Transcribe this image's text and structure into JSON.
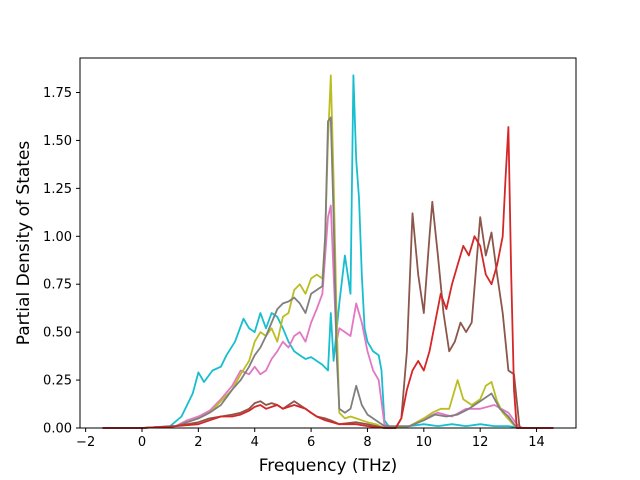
{
  "chart_data": {
    "type": "line",
    "title": "",
    "xlabel": "Frequency (THz)",
    "ylabel": "Partial Density of States",
    "xlim": [
      -2.2,
      15.4
    ],
    "ylim": [
      0,
      1.93
    ],
    "xticks": [
      "−2",
      "0",
      "2",
      "4",
      "6",
      "8",
      "10",
      "12",
      "14"
    ],
    "xtick_values": [
      -2,
      0,
      2,
      4,
      6,
      8,
      10,
      12,
      14
    ],
    "yticks": [
      "0.00",
      "0.25",
      "0.50",
      "0.75",
      "1.00",
      "1.25",
      "1.50",
      "1.75"
    ],
    "ytick_values": [
      0,
      0.25,
      0.5,
      0.75,
      1.0,
      1.25,
      1.5,
      1.75
    ],
    "grid": false,
    "legend": "none",
    "series": [
      {
        "color": "#17becf",
        "points": [
          [
            -1.4,
            0
          ],
          [
            0,
            0
          ],
          [
            1.0,
            0.01
          ],
          [
            1.4,
            0.06
          ],
          [
            1.6,
            0.12
          ],
          [
            1.8,
            0.18
          ],
          [
            2.0,
            0.29
          ],
          [
            2.2,
            0.24
          ],
          [
            2.5,
            0.3
          ],
          [
            2.8,
            0.32
          ],
          [
            3.0,
            0.38
          ],
          [
            3.3,
            0.45
          ],
          [
            3.6,
            0.57
          ],
          [
            3.8,
            0.52
          ],
          [
            4.0,
            0.5
          ],
          [
            4.2,
            0.6
          ],
          [
            4.4,
            0.52
          ],
          [
            4.6,
            0.6
          ],
          [
            4.8,
            0.58
          ],
          [
            5.0,
            0.52
          ],
          [
            5.2,
            0.45
          ],
          [
            5.4,
            0.4
          ],
          [
            5.6,
            0.38
          ],
          [
            5.8,
            0.36
          ],
          [
            6.0,
            0.37
          ],
          [
            6.2,
            0.35
          ],
          [
            6.4,
            0.33
          ],
          [
            6.6,
            0.3
          ],
          [
            6.7,
            0.6
          ],
          [
            6.8,
            0.35
          ],
          [
            7.0,
            0.65
          ],
          [
            7.2,
            0.9
          ],
          [
            7.3,
            0.8
          ],
          [
            7.4,
            0.7
          ],
          [
            7.5,
            1.84
          ],
          [
            7.6,
            1.4
          ],
          [
            7.7,
            1.2
          ],
          [
            7.8,
            0.8
          ],
          [
            7.9,
            0.52
          ],
          [
            8.0,
            0.45
          ],
          [
            8.2,
            0.4
          ],
          [
            8.4,
            0.38
          ],
          [
            8.5,
            0.3
          ],
          [
            8.6,
            0.04
          ],
          [
            8.8,
            0
          ],
          [
            9.5,
            0.01
          ],
          [
            10.0,
            0.02
          ],
          [
            10.5,
            0.01
          ],
          [
            11.0,
            0.02
          ],
          [
            11.5,
            0.01
          ],
          [
            12.0,
            0.02
          ],
          [
            12.5,
            0.01
          ],
          [
            13.0,
            0.01
          ],
          [
            13.5,
            0
          ],
          [
            14.6,
            0
          ]
        ]
      },
      {
        "color": "#e377c2",
        "points": [
          [
            -1.4,
            0
          ],
          [
            0,
            0
          ],
          [
            1.2,
            0.01
          ],
          [
            1.6,
            0.04
          ],
          [
            2.0,
            0.06
          ],
          [
            2.4,
            0.09
          ],
          [
            2.8,
            0.15
          ],
          [
            3.2,
            0.22
          ],
          [
            3.5,
            0.3
          ],
          [
            3.8,
            0.28
          ],
          [
            4.0,
            0.32
          ],
          [
            4.2,
            0.28
          ],
          [
            4.4,
            0.3
          ],
          [
            4.6,
            0.36
          ],
          [
            4.8,
            0.4
          ],
          [
            5.0,
            0.45
          ],
          [
            5.2,
            0.42
          ],
          [
            5.4,
            0.48
          ],
          [
            5.6,
            0.5
          ],
          [
            5.8,
            0.45
          ],
          [
            6.0,
            0.55
          ],
          [
            6.2,
            0.62
          ],
          [
            6.4,
            0.7
          ],
          [
            6.5,
            0.9
          ],
          [
            6.6,
            1.1
          ],
          [
            6.7,
            1.16
          ],
          [
            6.8,
            0.8
          ],
          [
            6.9,
            0.45
          ],
          [
            7.0,
            0.52
          ],
          [
            7.2,
            0.5
          ],
          [
            7.4,
            0.48
          ],
          [
            7.6,
            0.65
          ],
          [
            7.8,
            0.55
          ],
          [
            8.0,
            0.4
          ],
          [
            8.2,
            0.3
          ],
          [
            8.4,
            0.25
          ],
          [
            8.6,
            0.02
          ],
          [
            8.8,
            0
          ],
          [
            9.5,
            0.01
          ],
          [
            10.0,
            0.05
          ],
          [
            10.5,
            0.08
          ],
          [
            11.0,
            0.06
          ],
          [
            11.5,
            0.1
          ],
          [
            12.0,
            0.1
          ],
          [
            12.5,
            0.12
          ],
          [
            13.0,
            0.08
          ],
          [
            13.3,
            0.02
          ],
          [
            13.5,
            0
          ],
          [
            14.6,
            0
          ]
        ]
      },
      {
        "color": "#bcbd22",
        "points": [
          [
            -1.4,
            0
          ],
          [
            0,
            0
          ],
          [
            1.2,
            0.01
          ],
          [
            1.6,
            0.03
          ],
          [
            2.0,
            0.05
          ],
          [
            2.4,
            0.08
          ],
          [
            2.8,
            0.14
          ],
          [
            3.2,
            0.2
          ],
          [
            3.5,
            0.28
          ],
          [
            3.8,
            0.35
          ],
          [
            4.0,
            0.45
          ],
          [
            4.2,
            0.5
          ],
          [
            4.4,
            0.48
          ],
          [
            4.6,
            0.52
          ],
          [
            4.8,
            0.45
          ],
          [
            5.0,
            0.58
          ],
          [
            5.2,
            0.6
          ],
          [
            5.4,
            0.72
          ],
          [
            5.6,
            0.75
          ],
          [
            5.8,
            0.7
          ],
          [
            6.0,
            0.78
          ],
          [
            6.2,
            0.8
          ],
          [
            6.4,
            0.78
          ],
          [
            6.5,
            1.0
          ],
          [
            6.6,
            1.5
          ],
          [
            6.7,
            1.84
          ],
          [
            6.8,
            1.3
          ],
          [
            6.9,
            0.6
          ],
          [
            7.0,
            0.08
          ],
          [
            7.2,
            0.05
          ],
          [
            7.4,
            0.06
          ],
          [
            7.6,
            0.05
          ],
          [
            7.8,
            0.04
          ],
          [
            8.0,
            0.03
          ],
          [
            8.3,
            0.02
          ],
          [
            8.6,
            0
          ],
          [
            9.5,
            0.01
          ],
          [
            10.0,
            0.05
          ],
          [
            10.3,
            0.08
          ],
          [
            10.6,
            0.1
          ],
          [
            10.9,
            0.1
          ],
          [
            11.2,
            0.25
          ],
          [
            11.4,
            0.15
          ],
          [
            11.7,
            0.12
          ],
          [
            12.0,
            0.15
          ],
          [
            12.2,
            0.22
          ],
          [
            12.4,
            0.24
          ],
          [
            12.6,
            0.14
          ],
          [
            12.8,
            0.08
          ],
          [
            13.1,
            0.03
          ],
          [
            13.3,
            0
          ],
          [
            14.6,
            0
          ]
        ]
      },
      {
        "color": "#7f7f7f",
        "points": [
          [
            -1.4,
            0
          ],
          [
            0,
            0
          ],
          [
            1.2,
            0.01
          ],
          [
            1.6,
            0.03
          ],
          [
            2.0,
            0.05
          ],
          [
            2.4,
            0.08
          ],
          [
            2.8,
            0.12
          ],
          [
            3.2,
            0.2
          ],
          [
            3.5,
            0.25
          ],
          [
            3.8,
            0.32
          ],
          [
            4.0,
            0.38
          ],
          [
            4.2,
            0.42
          ],
          [
            4.4,
            0.48
          ],
          [
            4.6,
            0.55
          ],
          [
            4.8,
            0.62
          ],
          [
            5.0,
            0.65
          ],
          [
            5.2,
            0.66
          ],
          [
            5.4,
            0.68
          ],
          [
            5.6,
            0.65
          ],
          [
            5.8,
            0.6
          ],
          [
            6.0,
            0.7
          ],
          [
            6.2,
            0.72
          ],
          [
            6.4,
            0.74
          ],
          [
            6.5,
            1.0
          ],
          [
            6.6,
            1.6
          ],
          [
            6.7,
            1.62
          ],
          [
            6.8,
            1.1
          ],
          [
            6.9,
            0.4
          ],
          [
            7.0,
            0.1
          ],
          [
            7.2,
            0.08
          ],
          [
            7.4,
            0.1
          ],
          [
            7.6,
            0.22
          ],
          [
            7.8,
            0.12
          ],
          [
            8.0,
            0.07
          ],
          [
            8.2,
            0.05
          ],
          [
            8.4,
            0.03
          ],
          [
            8.6,
            0.01
          ],
          [
            9.5,
            0.01
          ],
          [
            10.0,
            0.04
          ],
          [
            10.4,
            0.07
          ],
          [
            10.8,
            0.06
          ],
          [
            11.2,
            0.07
          ],
          [
            11.6,
            0.1
          ],
          [
            12.0,
            0.14
          ],
          [
            12.4,
            0.18
          ],
          [
            12.7,
            0.1
          ],
          [
            13.0,
            0.06
          ],
          [
            13.3,
            0
          ],
          [
            14.6,
            0
          ]
        ]
      },
      {
        "color": "#8c564b",
        "points": [
          [
            -1.4,
            0
          ],
          [
            0,
            0
          ],
          [
            1.2,
            0.01
          ],
          [
            2.0,
            0.03
          ],
          [
            2.4,
            0.05
          ],
          [
            2.8,
            0.06
          ],
          [
            3.2,
            0.07
          ],
          [
            3.5,
            0.08
          ],
          [
            3.8,
            0.1
          ],
          [
            4.0,
            0.13
          ],
          [
            4.2,
            0.14
          ],
          [
            4.4,
            0.12
          ],
          [
            4.6,
            0.13
          ],
          [
            4.8,
            0.12
          ],
          [
            5.0,
            0.1
          ],
          [
            5.2,
            0.12
          ],
          [
            5.4,
            0.14
          ],
          [
            5.6,
            0.12
          ],
          [
            5.8,
            0.1
          ],
          [
            6.0,
            0.08
          ],
          [
            6.2,
            0.06
          ],
          [
            6.5,
            0.05
          ],
          [
            6.7,
            0.04
          ],
          [
            7.0,
            0.02
          ],
          [
            7.6,
            0.03
          ],
          [
            8.0,
            0.02
          ],
          [
            8.6,
            0
          ],
          [
            9.0,
            0
          ],
          [
            9.2,
            0.05
          ],
          [
            9.4,
            0.4
          ],
          [
            9.6,
            1.12
          ],
          [
            9.8,
            0.8
          ],
          [
            10.0,
            0.6
          ],
          [
            10.2,
            1.0
          ],
          [
            10.3,
            1.18
          ],
          [
            10.5,
            0.9
          ],
          [
            10.7,
            0.6
          ],
          [
            10.9,
            0.4
          ],
          [
            11.1,
            0.45
          ],
          [
            11.3,
            0.55
          ],
          [
            11.5,
            0.5
          ],
          [
            11.7,
            0.55
          ],
          [
            12.0,
            1.1
          ],
          [
            12.2,
            0.9
          ],
          [
            12.4,
            1.02
          ],
          [
            12.6,
            0.8
          ],
          [
            12.8,
            0.6
          ],
          [
            13.0,
            0.3
          ],
          [
            13.2,
            0.28
          ],
          [
            13.4,
            0
          ],
          [
            14.6,
            0
          ]
        ]
      },
      {
        "color": "#d62728",
        "points": [
          [
            -1.4,
            0
          ],
          [
            0,
            0
          ],
          [
            1.2,
            0.01
          ],
          [
            2.0,
            0.02
          ],
          [
            2.4,
            0.04
          ],
          [
            2.8,
            0.06
          ],
          [
            3.2,
            0.06
          ],
          [
            3.5,
            0.07
          ],
          [
            3.8,
            0.09
          ],
          [
            4.0,
            0.11
          ],
          [
            4.2,
            0.12
          ],
          [
            4.4,
            0.1
          ],
          [
            4.6,
            0.11
          ],
          [
            4.8,
            0.12
          ],
          [
            5.0,
            0.1
          ],
          [
            5.2,
            0.11
          ],
          [
            5.4,
            0.12
          ],
          [
            5.6,
            0.11
          ],
          [
            5.8,
            0.1
          ],
          [
            6.0,
            0.08
          ],
          [
            6.2,
            0.06
          ],
          [
            6.5,
            0.04
          ],
          [
            7.0,
            0.02
          ],
          [
            7.6,
            0.02
          ],
          [
            8.0,
            0.01
          ],
          [
            8.6,
            0
          ],
          [
            9.0,
            0
          ],
          [
            9.2,
            0.05
          ],
          [
            9.4,
            0.2
          ],
          [
            9.6,
            0.3
          ],
          [
            9.8,
            0.35
          ],
          [
            10.0,
            0.3
          ],
          [
            10.2,
            0.4
          ],
          [
            10.4,
            0.55
          ],
          [
            10.6,
            0.7
          ],
          [
            10.8,
            0.62
          ],
          [
            11.0,
            0.75
          ],
          [
            11.2,
            0.85
          ],
          [
            11.4,
            0.95
          ],
          [
            11.6,
            0.9
          ],
          [
            11.8,
            1.0
          ],
          [
            12.0,
            0.95
          ],
          [
            12.2,
            0.8
          ],
          [
            12.4,
            0.75
          ],
          [
            12.6,
            0.85
          ],
          [
            12.8,
            1.0
          ],
          [
            12.9,
            1.3
          ],
          [
            13.0,
            1.57
          ],
          [
            13.1,
            0.8
          ],
          [
            13.2,
            0.2
          ],
          [
            13.3,
            0
          ],
          [
            14.6,
            0
          ]
        ]
      }
    ]
  }
}
